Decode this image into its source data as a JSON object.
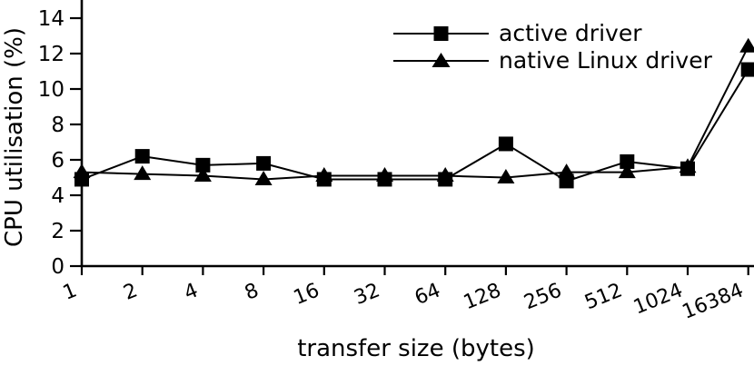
{
  "chart_data": {
    "type": "line",
    "title": "",
    "xlabel": "transfer size (bytes)",
    "ylabel": "CPU utilisation (%)",
    "categories": [
      "1",
      "2",
      "4",
      "8",
      "16",
      "32",
      "64",
      "128",
      "256",
      "512",
      "1024",
      "16384"
    ],
    "x_scale": "categorical (powers of 2)",
    "yticks": [
      0,
      2,
      4,
      6,
      8,
      10,
      12,
      14
    ],
    "ylim": [
      0,
      15
    ],
    "grid": false,
    "background": "#ffffff",
    "foreground": "#000000",
    "legend": {
      "position": "top-center-inside"
    },
    "series": [
      {
        "name": "active driver",
        "marker": "square",
        "values": [
          4.9,
          6.2,
          5.7,
          5.8,
          4.9,
          4.9,
          4.9,
          6.9,
          4.8,
          5.9,
          5.5,
          11.1
        ]
      },
      {
        "name": "native Linux driver",
        "marker": "triangle",
        "values": [
          5.3,
          5.2,
          5.1,
          4.9,
          5.1,
          5.1,
          5.1,
          5.0,
          5.3,
          5.3,
          5.6,
          12.4
        ]
      }
    ]
  }
}
